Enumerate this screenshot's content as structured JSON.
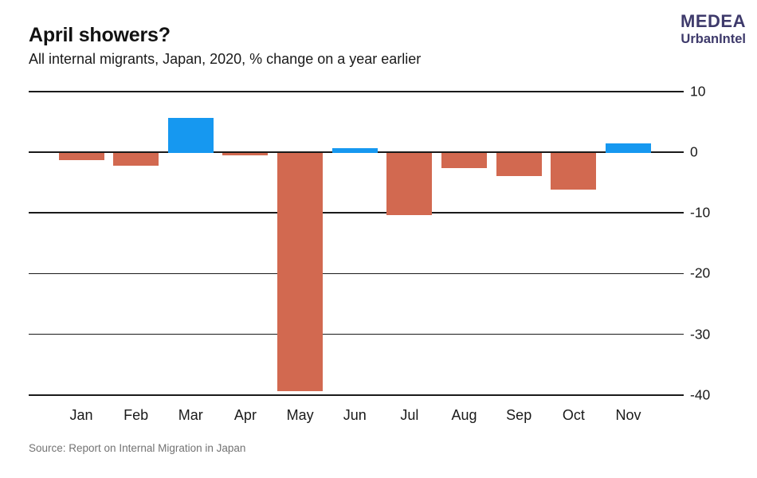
{
  "header": {
    "title": "April showers?",
    "subtitle": "All internal migrants, Japan, 2020, % change on a year earlier"
  },
  "logo": {
    "line1": "MEDEA",
    "line2": "UrbanIntel",
    "color": "#3e3a6b"
  },
  "source": "Source: Report on Internal Migration in Japan",
  "chart_data": {
    "type": "bar",
    "title": "April showers?",
    "subtitle": "All internal migrants, Japan, 2020, % change on a year earlier",
    "categories": [
      "Jan",
      "Feb",
      "Mar",
      "Apr",
      "May",
      "Jun",
      "Jul",
      "Aug",
      "Sep",
      "Oct",
      "Nov"
    ],
    "values": [
      -1.2,
      -2.2,
      5.6,
      -0.4,
      -39.3,
      0.5,
      -10.3,
      -2.6,
      -3.9,
      -6.1,
      1.4
    ],
    "xlabel": "",
    "ylabel": "% change on a year earlier",
    "ylim": [
      -40,
      10
    ],
    "yticks": [
      10,
      0,
      -10,
      -20,
      -30,
      -40
    ],
    "ytick_labels": [
      "10",
      "0",
      "-10",
      "-20",
      "-30",
      "-40"
    ],
    "tick_label_side": "right",
    "grid": "horizontal",
    "legend": "none",
    "colors": {
      "positive": "#1698f0",
      "negative": "#d26950",
      "grid": "#1a1a1a",
      "text": "#1a1a1a"
    }
  }
}
